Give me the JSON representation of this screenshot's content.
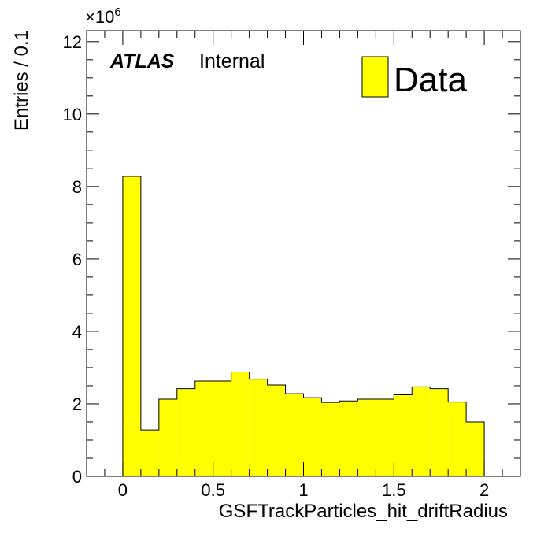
{
  "chart_data": {
    "type": "bar",
    "subtype": "histogram",
    "x_edges": [
      0,
      0.1,
      0.2,
      0.3,
      0.4,
      0.5,
      0.6,
      0.7,
      0.8,
      0.9,
      1.0,
      1.1,
      1.2,
      1.3,
      1.4,
      1.5,
      1.6,
      1.7,
      1.8,
      1.9,
      2.0
    ],
    "series": [
      {
        "name": "Data",
        "color": "#ffff00",
        "values": [
          8.28,
          1.28,
          2.13,
          2.42,
          2.63,
          2.63,
          2.88,
          2.68,
          2.52,
          2.28,
          2.17,
          2.04,
          2.08,
          2.13,
          2.13,
          2.25,
          2.47,
          2.42,
          2.05,
          1.5
        ]
      }
    ],
    "xlabel": "GSFTrackParticles_hit_driftRadius",
    "ylabel": "Entries / 0.1",
    "xlim": [
      -0.2,
      2.2
    ],
    "ylim": [
      0,
      12.3
    ],
    "y_multiplier": "10",
    "y_multiplier_exp": "6",
    "y_multiplier_prefix": "×",
    "x_ticks": [
      0,
      0.5,
      1,
      1.5,
      2
    ],
    "x_tick_labels": [
      "0",
      "0.5",
      "1",
      "1.5",
      "2"
    ],
    "y_ticks": [
      0,
      2,
      4,
      6,
      8,
      10,
      12
    ],
    "y_tick_labels": [
      "0",
      "2",
      "4",
      "6",
      "8",
      "10",
      "12"
    ],
    "x_minor_step": 0.1,
    "y_minor_step": 0.5,
    "grid": false,
    "legend_position": "top-right"
  },
  "annotations": {
    "experiment": "ATLAS",
    "status": "Internal"
  },
  "legend": {
    "label": "Data",
    "color": "#ffff00"
  }
}
